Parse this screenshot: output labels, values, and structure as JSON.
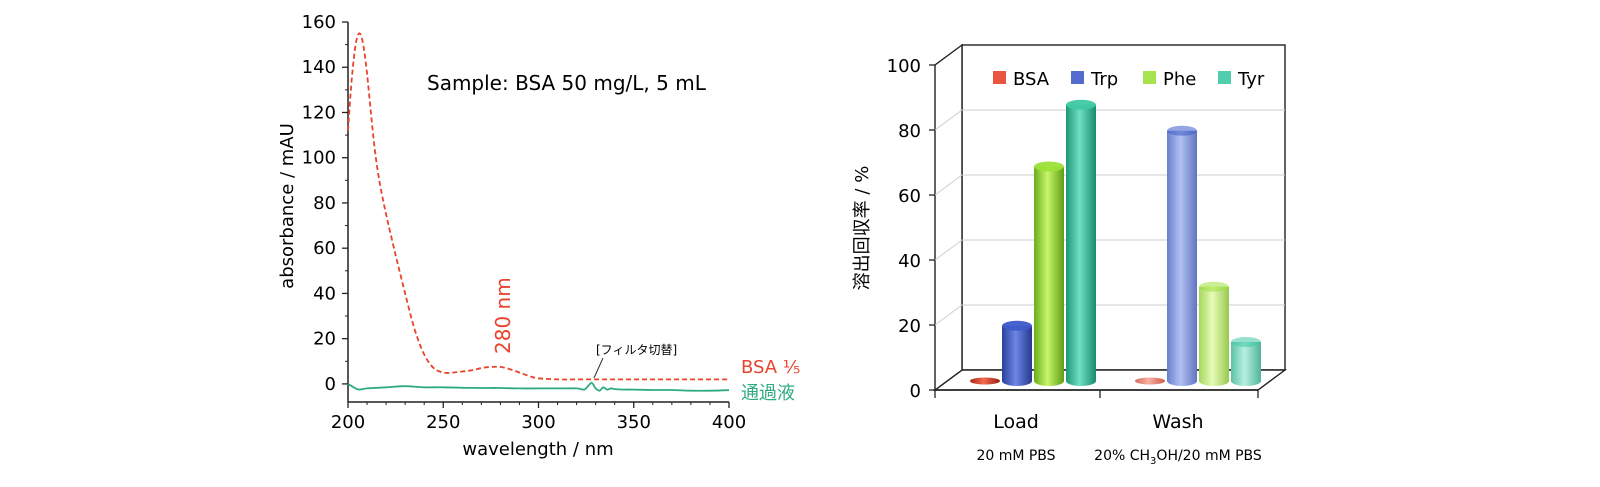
{
  "chart_data": [
    {
      "type": "line",
      "title": "",
      "annotation": "Sample: BSA 50 mg/L, 5 mL",
      "xlabel": "wavelength / nm",
      "ylabel": "absorbance  / mAU",
      "xlim": [
        200,
        400
      ],
      "ylim": [
        -8,
        160
      ],
      "xticks": [
        "200",
        "250",
        "300",
        "350",
        "400"
      ],
      "yticks": [
        "0",
        "20",
        "40",
        "60",
        "80",
        "100",
        "120",
        "140",
        "160"
      ],
      "grid": false,
      "peak_label": "280 nm",
      "filter_label": "[フィルタ切替]",
      "series": [
        {
          "name": "BSA ⅕",
          "color": "#e8432c",
          "dashed": true,
          "x": [
            200,
            202,
            204,
            206,
            208,
            210,
            212,
            214,
            216,
            218,
            220,
            225,
            230,
            235,
            240,
            245,
            250,
            255,
            260,
            265,
            270,
            275,
            280,
            285,
            290,
            295,
            300,
            310,
            320,
            330,
            340,
            350,
            360,
            370,
            380,
            390,
            400
          ],
          "y": [
            112,
            135,
            150,
            155,
            150,
            137,
            120,
            104,
            92,
            83,
            75,
            57,
            40,
            24,
            13,
            7,
            5,
            5,
            5.5,
            6,
            7,
            7.5,
            7.5,
            6.5,
            5,
            3.5,
            2.5,
            2,
            2,
            2,
            2,
            2,
            2,
            2,
            2,
            2,
            2
          ]
        },
        {
          "name": "通過液",
          "color": "#2eaa82",
          "dashed": false,
          "x": [
            200,
            202,
            204,
            206,
            210,
            220,
            230,
            240,
            250,
            260,
            270,
            280,
            290,
            300,
            310,
            320,
            324,
            326,
            328,
            330,
            332,
            334,
            336,
            338,
            340,
            345,
            350,
            360,
            370,
            380,
            390,
            400
          ],
          "y": [
            0,
            -1,
            -2,
            -2.5,
            -2,
            -1.5,
            -1,
            -1.5,
            -1.5,
            -1.7,
            -1.8,
            -1.8,
            -2,
            -2,
            -2,
            -2,
            -2.5,
            -1,
            0.5,
            -2,
            -3,
            -1.5,
            -2.5,
            -2,
            -2.3,
            -2.5,
            -2.5,
            -2.7,
            -2.7,
            -3,
            -3,
            -2.8
          ]
        }
      ]
    },
    {
      "type": "bar",
      "title": "",
      "ylabel": "溶出回収率 / %",
      "ylim": [
        0,
        100
      ],
      "yticks": [
        "0",
        "20",
        "40",
        "60",
        "80",
        "100"
      ],
      "grid": true,
      "legend_position": "top",
      "categories": [
        "Load",
        "Wash"
      ],
      "category_sublabels": [
        "20 mM PBS",
        "20% CH3OH/20 mM PBS"
      ],
      "series": [
        {
          "name": "BSA",
          "color": "#e8432c",
          "values": [
            0,
            0
          ]
        },
        {
          "name": "Trp",
          "color": "#3e5bc9",
          "values": [
            17,
            77
          ]
        },
        {
          "name": "Phe",
          "color": "#9de03a",
          "values": [
            66,
            29
          ]
        },
        {
          "name": "Tyr",
          "color": "#3ec9a4",
          "values": [
            85,
            12
          ]
        }
      ]
    }
  ]
}
